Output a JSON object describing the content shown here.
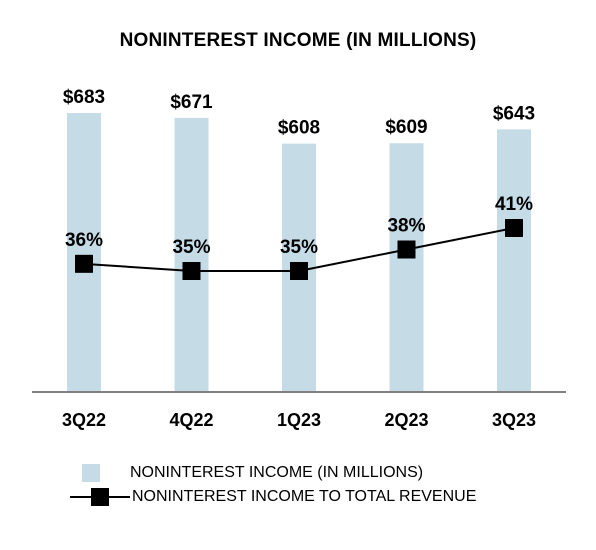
{
  "chart_data": {
    "type": "bar",
    "title": "NONINTEREST INCOME (IN MILLIONS)",
    "categories": [
      "3Q22",
      "4Q22",
      "1Q23",
      "2Q23",
      "3Q23"
    ],
    "series": [
      {
        "name": "NONINTEREST INCOME (IN MILLIONS)",
        "type": "bar",
        "values": [
          683,
          671,
          608,
          609,
          643
        ],
        "labels": [
          "$683",
          "$671",
          "$608",
          "$609",
          "$643"
        ],
        "color": "#c5dbe6"
      },
      {
        "name": "NONINTEREST INCOME TO TOTAL REVENUE",
        "type": "line",
        "values": [
          36,
          35,
          35,
          38,
          41
        ],
        "labels": [
          "36%",
          "35%",
          "35%",
          "38%",
          "41%"
        ],
        "color": "#000000"
      }
    ],
    "ylim_bars": [
      0,
      700
    ],
    "ylim_line": [
      0,
      72
    ],
    "grid": false,
    "legend_position": "bottom"
  }
}
